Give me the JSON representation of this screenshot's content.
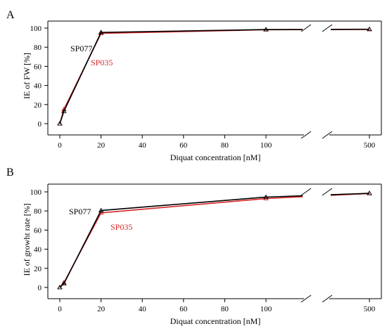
{
  "chart_data": [
    {
      "panel_label": "A",
      "type": "line",
      "x": [
        0,
        2,
        20,
        100,
        500
      ],
      "series": [
        {
          "name": "SP077",
          "color": "#000000",
          "values": [
            0,
            13,
            95.5,
            98.5,
            98.8
          ]
        },
        {
          "name": "SP035",
          "color": "#d62728",
          "values": [
            0,
            15,
            94.5,
            98.3,
            98.6
          ]
        }
      ],
      "xlabel": "Diquat concentration [nM]",
      "ylabel": "IE of FW [%]",
      "ylim": [
        -8,
        103
      ],
      "x_ticks": [
        "0",
        "20",
        "40",
        "60",
        "80",
        "100",
        "500"
      ],
      "y_ticks": [
        "0",
        "20",
        "40",
        "60",
        "80",
        "100"
      ],
      "x_axis_break": [
        100,
        500
      ],
      "grid": false
    },
    {
      "panel_label": "B",
      "type": "line",
      "x": [
        0,
        2,
        20,
        100,
        500
      ],
      "series": [
        {
          "name": "SP077",
          "color": "#000000",
          "values": [
            0,
            4,
            80.5,
            94.5,
            98.5
          ]
        },
        {
          "name": "SP035",
          "color": "#d62728",
          "values": [
            0,
            5,
            78,
            93,
            98.3
          ]
        }
      ],
      "xlabel": "Diquat concentration [nM]",
      "ylabel": "IE of growht rate [%]",
      "ylim": [
        -8,
        103
      ],
      "x_ticks": [
        "0",
        "20",
        "40",
        "60",
        "80",
        "100",
        "500"
      ],
      "y_ticks": [
        "0",
        "20",
        "40",
        "60",
        "80",
        "100"
      ],
      "x_axis_break": [
        100,
        500
      ],
      "grid": false
    }
  ]
}
